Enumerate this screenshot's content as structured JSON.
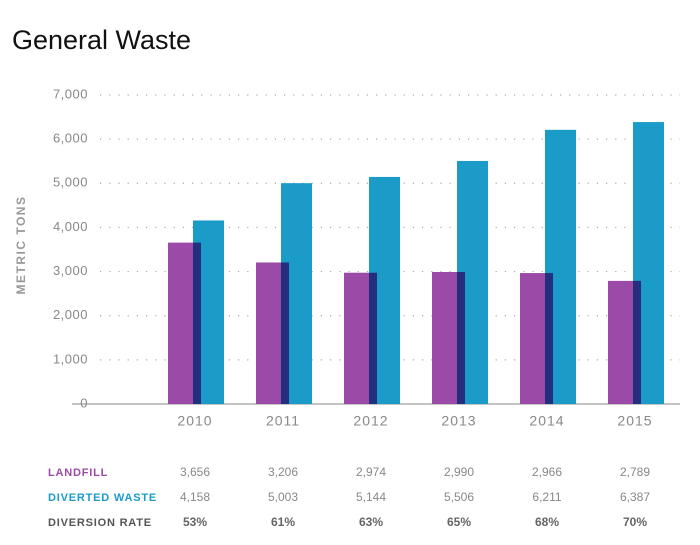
{
  "chart_data": {
    "type": "bar",
    "title": "General Waste",
    "y_label": "METRIC TONS",
    "categories": [
      "2010",
      "2011",
      "2012",
      "2013",
      "2014",
      "2015"
    ],
    "series": [
      {
        "name": "LANDFILL",
        "color": "#9b4aa8",
        "edge_color": "#232f7e",
        "values": [
          3656,
          3206,
          2974,
          2990,
          2966,
          2789
        ],
        "value_labels": [
          "3,656",
          "3,206",
          "2,974",
          "2,990",
          "2,966",
          "2,789"
        ]
      },
      {
        "name": "DIVERTED WASTE",
        "color": "#1b9cc8",
        "values": [
          4158,
          5003,
          5144,
          5506,
          6211,
          6387
        ],
        "value_labels": [
          "4,158",
          "5,003",
          "5,144",
          "5,506",
          "6,211",
          "6,387"
        ]
      }
    ],
    "diversion_rate": {
      "name": "DIVERSION RATE",
      "color": "#555555",
      "values": [
        53,
        61,
        63,
        65,
        68,
        70
      ],
      "value_labels": [
        "53%",
        "61%",
        "63%",
        "65%",
        "68%",
        "70%"
      ]
    },
    "ylim": [
      0,
      7000
    ],
    "yticks": [
      0,
      {
        "value": 1000,
        "label": "1,000"
      },
      {
        "value": 2000,
        "label": "2,000"
      },
      {
        "value": 3000,
        "label": "3,000"
      },
      {
        "value": 4000,
        "label": "4,000"
      },
      {
        "value": 5000,
        "label": "5,000"
      },
      {
        "value": 6000,
        "label": "6,000"
      },
      {
        "value": 7000,
        "label": "7,000"
      }
    ],
    "grid": true
  }
}
